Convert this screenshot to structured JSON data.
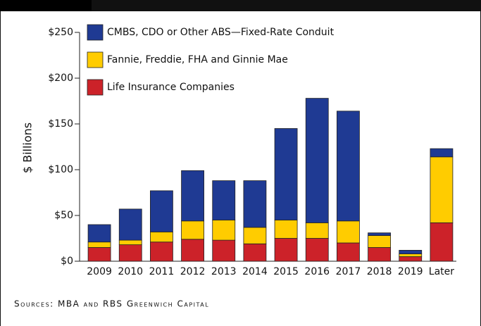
{
  "chart_data": {
    "type": "stacked-bar",
    "ylabel": "$ Billions",
    "categories": [
      "2009",
      "2010",
      "2011",
      "2012",
      "2013",
      "2014",
      "2015",
      "2016",
      "2017",
      "2018",
      "2019",
      "Later"
    ],
    "series": [
      {
        "name": "Life Insurance Companies",
        "color": "#cc2229",
        "values": [
          15,
          18,
          21,
          24,
          23,
          19,
          25,
          25,
          20,
          15,
          5,
          42
        ]
      },
      {
        "name": "Fannie, Freddie, FHA and Ginnie Mae",
        "color": "#ffcc00",
        "values": [
          6,
          5,
          11,
          20,
          22,
          18,
          20,
          17,
          24,
          13,
          3,
          72
        ]
      },
      {
        "name": "CMBS, CDO or Other ABS—Fixed-Rate Conduit",
        "color": "#1f3a93",
        "values": [
          19,
          34,
          45,
          55,
          43,
          51,
          100,
          136,
          120,
          3,
          4,
          9
        ]
      }
    ],
    "ylim": [
      0,
      250
    ],
    "yticks": [
      {
        "value": 0,
        "label": "$0"
      },
      {
        "value": 50,
        "label": "$50"
      },
      {
        "value": 100,
        "label": "$100"
      },
      {
        "value": 150,
        "label": "$150"
      },
      {
        "value": 200,
        "label": "$200"
      },
      {
        "value": 250,
        "label": "$250"
      }
    ],
    "source": "Sources: MBA and RBS Greenwich Capital"
  }
}
